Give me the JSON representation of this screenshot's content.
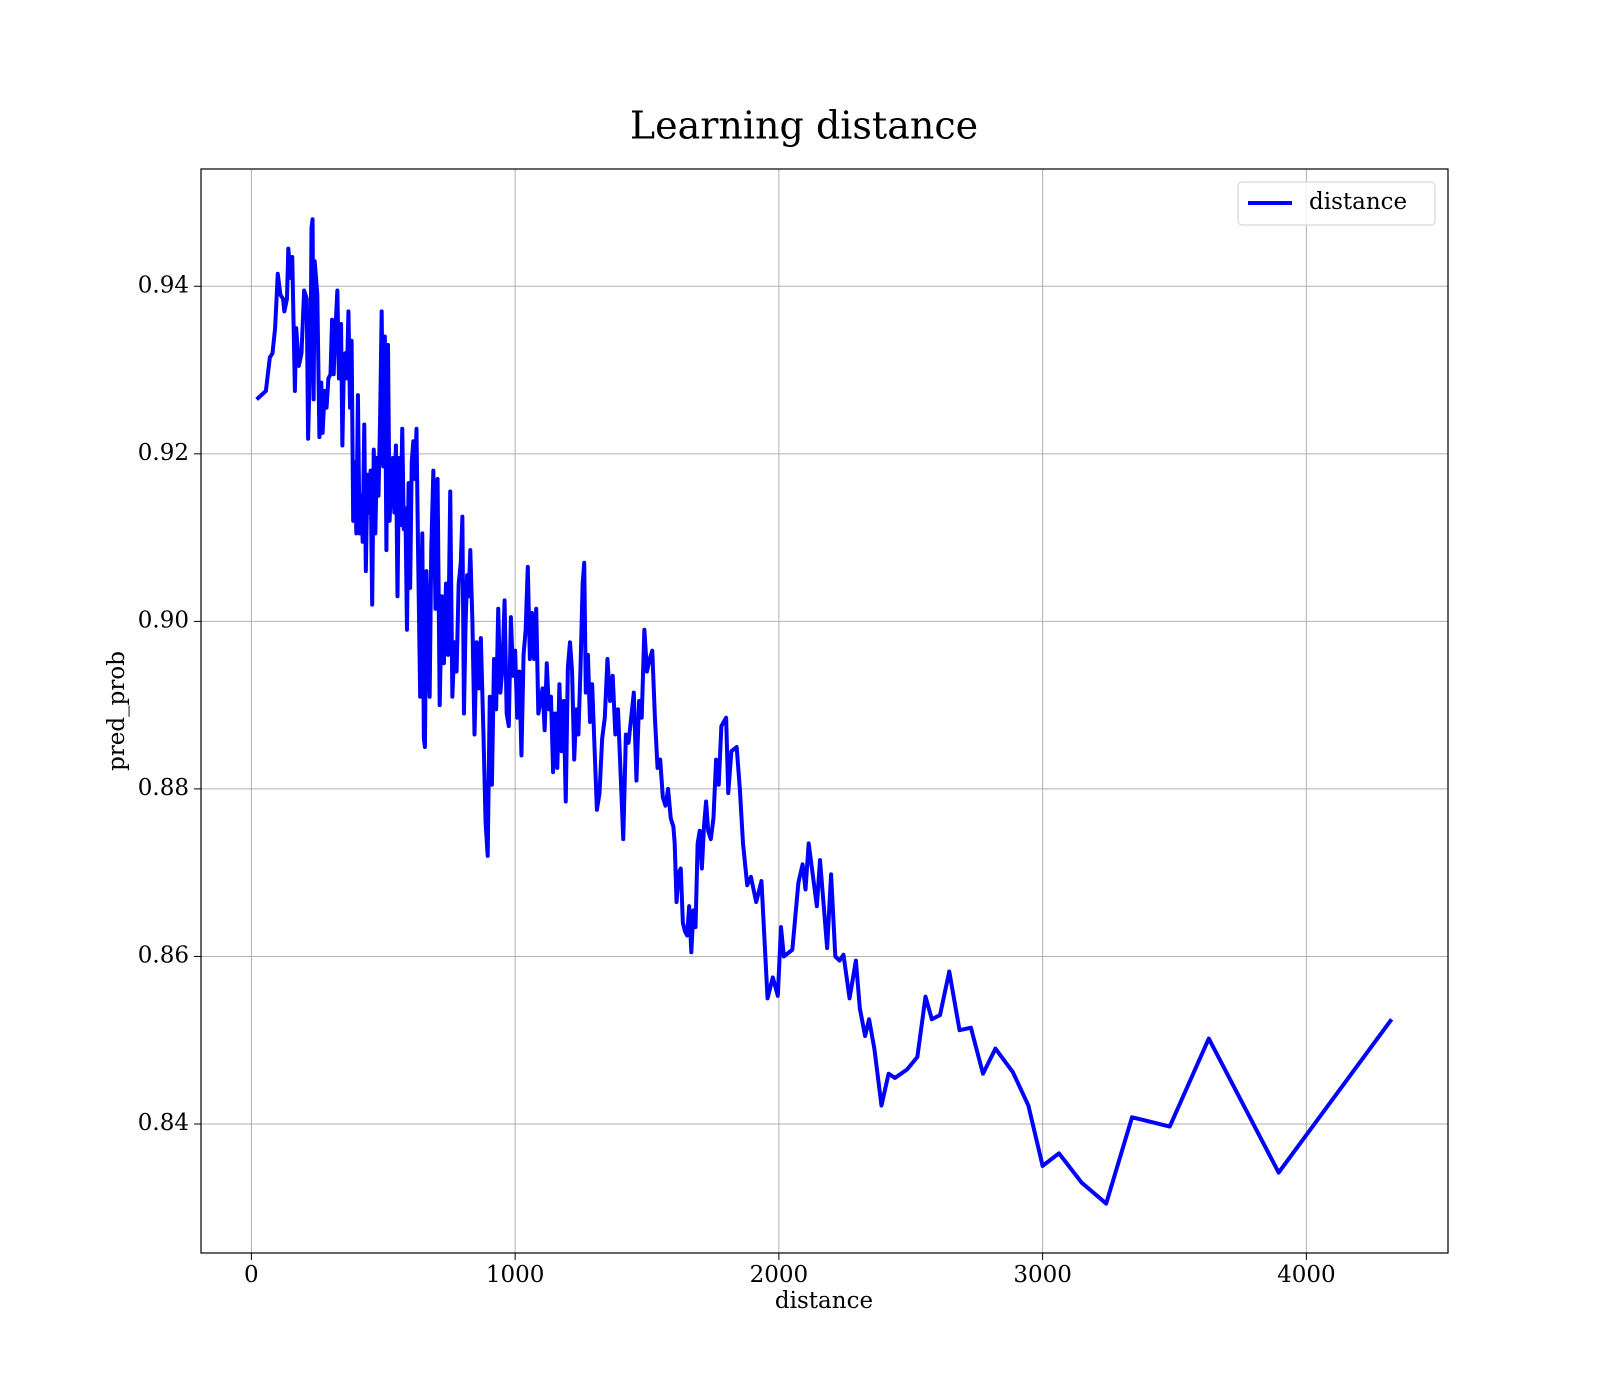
{
  "chart_data": {
    "type": "line",
    "title": "Learning distance",
    "xlabel": "distance",
    "ylabel": "pred_prob",
    "x": [
      20,
      55,
      70,
      80,
      90,
      100,
      110,
      120,
      125,
      135,
      140,
      150,
      155,
      165,
      170,
      180,
      190,
      200,
      210,
      215,
      225,
      228,
      232,
      236,
      240,
      250,
      258,
      265,
      270,
      278,
      285,
      292,
      300,
      306,
      312,
      318,
      326,
      332,
      340,
      345,
      350,
      356,
      362,
      368,
      374,
      380,
      386,
      392,
      398,
      404,
      410,
      416,
      422,
      428,
      434,
      440,
      446,
      452,
      458,
      464,
      470,
      476,
      482,
      488,
      494,
      500,
      506,
      512,
      518,
      524,
      530,
      536,
      542,
      548,
      554,
      560,
      566,
      572,
      578,
      584,
      590,
      596,
      602,
      608,
      614,
      620,
      626,
      632,
      640,
      648,
      654,
      658,
      664,
      670,
      676,
      682,
      690,
      698,
      706,
      714,
      722,
      730,
      738,
      746,
      754,
      762,
      770,
      778,
      786,
      794,
      800,
      806,
      812,
      818,
      824,
      830,
      838,
      846,
      854,
      862,
      870,
      880,
      888,
      896,
      904,
      912,
      920,
      928,
      936,
      944,
      952,
      960,
      968,
      976,
      984,
      992,
      1000,
      1008,
      1016,
      1024,
      1032,
      1040,
      1048,
      1056,
      1064,
      1072,
      1080,
      1088,
      1096,
      1104,
      1112,
      1120,
      1128,
      1136,
      1144,
      1152,
      1160,
      1168,
      1176,
      1184,
      1192,
      1200,
      1208,
      1216,
      1224,
      1232,
      1240,
      1248,
      1256,
      1262,
      1268,
      1276,
      1284,
      1292,
      1310,
      1320,
      1330,
      1340,
      1350,
      1360,
      1370,
      1380,
      1390,
      1410,
      1420,
      1430,
      1440,
      1450,
      1460,
      1470,
      1480,
      1490,
      1500,
      1510,
      1520,
      1530,
      1540,
      1550,
      1560,
      1570,
      1580,
      1590,
      1600,
      1605,
      1612,
      1620,
      1628,
      1636,
      1644,
      1652,
      1660,
      1668,
      1676,
      1684,
      1692,
      1700,
      1708,
      1716,
      1724,
      1732,
      1742,
      1752,
      1762,
      1772,
      1782,
      1800,
      1808,
      1820,
      1840,
      1852,
      1864,
      1880,
      1894,
      1914,
      1934,
      1957,
      1977,
      1996,
      2008,
      2019,
      2051,
      2074,
      2090,
      2101,
      2113,
      2144,
      2156,
      2183,
      2198,
      2214,
      2230,
      2245,
      2268,
      2292,
      2307,
      2327,
      2342,
      2362,
      2389,
      2416,
      2440,
      2486,
      2525,
      2556,
      2580,
      2611,
      2646,
      2685,
      2728,
      2774,
      2821,
      2887,
      2946,
      3000,
      3062,
      3148,
      3241,
      3339,
      3482,
      3630,
      3895,
      4323
    ],
    "series": [
      {
        "name": "distance",
        "color": "#0000ff",
        "values": [
          0.9265,
          0.9275,
          0.9315,
          0.932,
          0.935,
          0.9415,
          0.939,
          0.9385,
          0.937,
          0.9385,
          0.9445,
          0.941,
          0.9435,
          0.9275,
          0.935,
          0.9305,
          0.932,
          0.9395,
          0.9385,
          0.9218,
          0.9345,
          0.947,
          0.948,
          0.9265,
          0.943,
          0.939,
          0.922,
          0.9285,
          0.9225,
          0.9275,
          0.9255,
          0.929,
          0.9295,
          0.936,
          0.9295,
          0.9345,
          0.9395,
          0.929,
          0.9355,
          0.921,
          0.9295,
          0.932,
          0.929,
          0.937,
          0.9255,
          0.9335,
          0.912,
          0.919,
          0.9105,
          0.927,
          0.9105,
          0.915,
          0.9095,
          0.9235,
          0.906,
          0.9175,
          0.913,
          0.918,
          0.902,
          0.9205,
          0.9105,
          0.9195,
          0.915,
          0.924,
          0.937,
          0.9185,
          0.934,
          0.9085,
          0.933,
          0.912,
          0.9165,
          0.9195,
          0.913,
          0.921,
          0.903,
          0.9195,
          0.9115,
          0.923,
          0.911,
          0.9135,
          0.899,
          0.9165,
          0.904,
          0.919,
          0.9215,
          0.917,
          0.923,
          0.9085,
          0.891,
          0.9105,
          0.886,
          0.885,
          0.906,
          0.8975,
          0.891,
          0.9085,
          0.918,
          0.9015,
          0.917,
          0.89,
          0.903,
          0.895,
          0.9045,
          0.896,
          0.9155,
          0.891,
          0.8975,
          0.894,
          0.9045,
          0.907,
          0.9125,
          0.889,
          0.8995,
          0.9055,
          0.903,
          0.9085,
          0.9,
          0.8865,
          0.8975,
          0.892,
          0.898,
          0.8865,
          0.876,
          0.872,
          0.891,
          0.8805,
          0.8955,
          0.8895,
          0.9015,
          0.8915,
          0.8945,
          0.9025,
          0.889,
          0.8875,
          0.9005,
          0.8935,
          0.8965,
          0.8885,
          0.894,
          0.884,
          0.896,
          0.899,
          0.9065,
          0.8955,
          0.901,
          0.8955,
          0.9015,
          0.889,
          0.8905,
          0.892,
          0.887,
          0.895,
          0.8895,
          0.891,
          0.882,
          0.889,
          0.8825,
          0.8925,
          0.8845,
          0.8905,
          0.8785,
          0.8945,
          0.8975,
          0.894,
          0.8835,
          0.8895,
          0.8865,
          0.8945,
          0.9045,
          0.907,
          0.8915,
          0.896,
          0.888,
          0.8925,
          0.8775,
          0.8795,
          0.886,
          0.8885,
          0.8955,
          0.8905,
          0.8935,
          0.8865,
          0.8895,
          0.874,
          0.8865,
          0.8855,
          0.8885,
          0.8915,
          0.881,
          0.8905,
          0.8885,
          0.899,
          0.894,
          0.8955,
          0.8965,
          0.8885,
          0.8825,
          0.8835,
          0.879,
          0.878,
          0.88,
          0.8765,
          0.8755,
          0.8735,
          0.8665,
          0.87,
          0.8705,
          0.864,
          0.863,
          0.8625,
          0.866,
          0.8605,
          0.8655,
          0.8635,
          0.8735,
          0.875,
          0.8705,
          0.8755,
          0.8785,
          0.875,
          0.874,
          0.8765,
          0.8835,
          0.8805,
          0.8875,
          0.8885,
          0.8795,
          0.8845,
          0.885,
          0.88,
          0.8735,
          0.8685,
          0.8695,
          0.8665,
          0.869,
          0.855,
          0.8575,
          0.8553,
          0.8635,
          0.86,
          0.8608,
          0.8688,
          0.871,
          0.868,
          0.8735,
          0.866,
          0.8715,
          0.861,
          0.8698,
          0.86,
          0.8595,
          0.8602,
          0.855,
          0.8595,
          0.8538,
          0.8505,
          0.8525,
          0.849,
          0.8422,
          0.846,
          0.8455,
          0.8465,
          0.848,
          0.8552,
          0.8525,
          0.853,
          0.8582,
          0.8512,
          0.8515,
          0.846,
          0.849,
          0.8462,
          0.8422,
          0.835,
          0.8365,
          0.833,
          0.8305,
          0.8408,
          0.8397,
          0.8502,
          0.8342,
          0.8525
        ]
      }
    ],
    "xlim": [
      -191,
      4537
    ],
    "ylim": [
      0.8246,
      0.954
    ],
    "xticks": [
      0,
      1000,
      2000,
      3000,
      4000
    ],
    "yticks": [
      0.84,
      0.86,
      0.88,
      {
        "value": 0.9,
        "label": "0.90"
      },
      0.92,
      0.94
    ],
    "grid": true,
    "legend": "upper right"
  }
}
